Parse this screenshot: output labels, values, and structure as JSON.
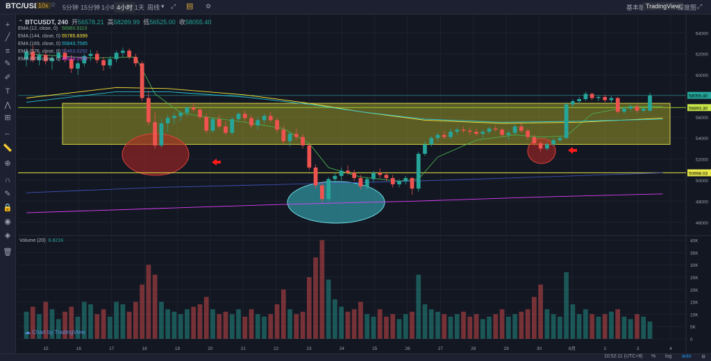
{
  "header": {
    "pair": "BTC/USDT",
    "leverage": "10x",
    "intervals": [
      "5分钟",
      "15分钟",
      "1小时",
      "4小时",
      "1天",
      "周线"
    ],
    "active_interval": "4小时",
    "views": [
      "基本版",
      "TradingView",
      "深度图"
    ],
    "active_view": "TradingView"
  },
  "ohlc": {
    "symbol": "BTCUSDT, 240",
    "open_label": "开",
    "open": "56578.21",
    "high_label": "高",
    "high": "58289.99",
    "low_label": "低",
    "low": "56525.00",
    "close_label": "收",
    "close": "58055.40"
  },
  "legend": [
    {
      "label": "EMA (12, close, 0)",
      "value": "56960.9110",
      "color": "#4caf50"
    },
    {
      "label": "EMA (144, close, 0)",
      "value": "55785.8399",
      "color": "#ffeb3b"
    },
    {
      "label": "EMA (169, close, 0)",
      "value": "55843.7585",
      "color": "#26c6da"
    },
    {
      "label": "EMA (576, close, 0)",
      "value": "50463.0292",
      "color": "#3f51b5"
    },
    {
      "label": "EMA (676, close, 0)",
      "value": "48528.0574",
      "color": "#e040fb"
    }
  ],
  "volume_header": {
    "label": "Volume (20)",
    "value": "6.821K",
    "color": "#26a69a"
  },
  "branding": "Chart by TradingView",
  "bottom": {
    "time": "10:52:11 (UTC+8)",
    "pct": "%",
    "log": "log",
    "auto": "auto"
  },
  "price_labels": {
    "last": {
      "value": "58055.40",
      "color": "#26a69a"
    },
    "resistance": {
      "value": "56893.30",
      "color": "#c8e64a"
    },
    "support": {
      "value": "50698.03",
      "color": "#e8e84a"
    }
  },
  "colors": {
    "up": "#26a69a",
    "down": "#ef5350",
    "zone": "#b5b22a"
  },
  "tools": [
    "crosshair-icon",
    "trendline-icon",
    "fib-icon",
    "brush-icon",
    "pen-icon",
    "text-icon",
    "pattern-icon",
    "measure-icon",
    "arrow-left-icon",
    "ruler-icon",
    "zoom-icon",
    "magnet-icon",
    "lock-draw-icon",
    "lock-icon",
    "eye-icon",
    "layers-icon",
    "trash-icon"
  ],
  "chart_data": {
    "type": "line",
    "subtype": "candlestick",
    "x_ticks": [
      "15",
      "16",
      "17",
      "18",
      "19",
      "20",
      "21",
      "22",
      "23",
      "24",
      "25",
      "26",
      "27",
      "28",
      "29",
      "30",
      "8月",
      "2",
      "3",
      "4"
    ],
    "y_ticks": [
      46000,
      48000,
      50000,
      52000,
      54000,
      56000,
      58000,
      60000,
      62000,
      64000
    ],
    "ylim": [
      44800,
      65600
    ],
    "volume_ticks": [
      "40K",
      "35K",
      "30K",
      "25K",
      "20K",
      "15K",
      "10K",
      "5K",
      "0"
    ],
    "volume_ylim": [
      0,
      41000
    ],
    "candles": [
      [
        61500,
        62500,
        60800,
        62200
      ],
      [
        62200,
        62800,
        61200,
        61400
      ],
      [
        61400,
        62100,
        60900,
        61900
      ],
      [
        61900,
        62200,
        61000,
        61300
      ],
      [
        61300,
        61800,
        60500,
        61600
      ],
      [
        61600,
        62400,
        61300,
        62100
      ],
      [
        62100,
        62500,
        61200,
        61500
      ],
      [
        61500,
        61900,
        60200,
        60600
      ],
      [
        60600,
        61300,
        60000,
        61100
      ],
      [
        61100,
        62000,
        60800,
        61800
      ],
      [
        61800,
        62400,
        61300,
        62000
      ],
      [
        62000,
        62300,
        61100,
        61400
      ],
      [
        61400,
        61700,
        60400,
        60900
      ],
      [
        60900,
        61800,
        60600,
        61500
      ],
      [
        61500,
        62300,
        61200,
        62100
      ],
      [
        62100,
        62600,
        61700,
        62300
      ],
      [
        62300,
        62500,
        61500,
        61700
      ],
      [
        61700,
        62000,
        60800,
        61100
      ],
      [
        61100,
        61300,
        57500,
        57800
      ],
      [
        57800,
        58500,
        55200,
        55500
      ],
      [
        55500,
        56500,
        53000,
        53300
      ],
      [
        53300,
        55800,
        53100,
        55400
      ],
      [
        55400,
        56200,
        54600,
        55900
      ],
      [
        55900,
        56400,
        55300,
        56100
      ],
      [
        56100,
        56600,
        55600,
        56400
      ],
      [
        56400,
        57000,
        56100,
        56900
      ],
      [
        56900,
        57300,
        56500,
        56700
      ],
      [
        56700,
        56900,
        55800,
        56000
      ],
      [
        56000,
        56300,
        54400,
        54700
      ],
      [
        54700,
        56000,
        54500,
        55800
      ],
      [
        55800,
        56200,
        54900,
        55100
      ],
      [
        55100,
        55600,
        54300,
        54500
      ],
      [
        54500,
        56000,
        54300,
        55800
      ],
      [
        55800,
        56500,
        55500,
        56300
      ],
      [
        56300,
        56600,
        55600,
        55900
      ],
      [
        55900,
        56200,
        54900,
        55200
      ],
      [
        55200,
        56000,
        54800,
        55700
      ],
      [
        55700,
        56300,
        55400,
        56100
      ],
      [
        56100,
        56500,
        55500,
        55700
      ],
      [
        55700,
        55900,
        54500,
        54800
      ],
      [
        54800,
        55200,
        53400,
        53700
      ],
      [
        53700,
        54600,
        53200,
        54400
      ],
      [
        54400,
        54900,
        53800,
        54100
      ],
      [
        54100,
        54400,
        53000,
        53300
      ],
      [
        53300,
        53500,
        51000,
        51200
      ],
      [
        51200,
        51500,
        49200,
        49500
      ],
      [
        49500,
        49800,
        47900,
        48200
      ],
      [
        48200,
        50300,
        48000,
        50100
      ],
      [
        50100,
        50700,
        49700,
        50400
      ],
      [
        50400,
        51200,
        50000,
        50900
      ],
      [
        50900,
        51400,
        50500,
        50700
      ],
      [
        50700,
        51000,
        49900,
        50200
      ],
      [
        50200,
        50500,
        49100,
        49400
      ],
      [
        49400,
        50300,
        49100,
        50100
      ],
      [
        50100,
        50900,
        49800,
        50700
      ],
      [
        50700,
        51100,
        50200,
        50500
      ],
      [
        50500,
        50800,
        49900,
        50200
      ],
      [
        50200,
        50500,
        49300,
        49600
      ],
      [
        49600,
        50100,
        49300,
        49900
      ],
      [
        49900,
        50400,
        49600,
        50200
      ],
      [
        50200,
        50300,
        48600,
        49200
      ],
      [
        49200,
        52700,
        48900,
        52500
      ],
      [
        52500,
        53700,
        52300,
        53400
      ],
      [
        53400,
        54200,
        53200,
        54000
      ],
      [
        54000,
        54500,
        53700,
        54300
      ],
      [
        54300,
        54700,
        53900,
        54100
      ],
      [
        54100,
        54900,
        53900,
        54600
      ],
      [
        54600,
        55000,
        54300,
        54800
      ],
      [
        54800,
        55100,
        54500,
        54700
      ],
      [
        54700,
        55000,
        54300,
        54600
      ],
      [
        54600,
        54900,
        54200,
        54400
      ],
      [
        54400,
        54800,
        54000,
        54600
      ],
      [
        54600,
        55100,
        54400,
        54900
      ],
      [
        54900,
        55200,
        54600,
        54800
      ],
      [
        54800,
        55000,
        54100,
        54300
      ],
      [
        54300,
        54700,
        53800,
        54500
      ],
      [
        54500,
        55300,
        54300,
        55100
      ],
      [
        55100,
        55400,
        54500,
        54700
      ],
      [
        54700,
        54900,
        53800,
        54100
      ],
      [
        54100,
        54300,
        53300,
        53500
      ],
      [
        53500,
        53700,
        52700,
        53000
      ],
      [
        53000,
        53600,
        52800,
        53400
      ],
      [
        53400,
        54000,
        53200,
        53800
      ],
      [
        53800,
        54200,
        53600,
        54000
      ],
      [
        54000,
        57400,
        53900,
        57200
      ],
      [
        57200,
        57700,
        56900,
        57500
      ],
      [
        57500,
        57900,
        57200,
        57700
      ],
      [
        57700,
        58400,
        57500,
        58200
      ],
      [
        58200,
        58300,
        57600,
        57800
      ],
      [
        57800,
        58100,
        57500,
        57900
      ],
      [
        57900,
        58100,
        57400,
        57600
      ],
      [
        57600,
        58000,
        57300,
        57800
      ],
      [
        57800,
        57900,
        56300,
        56500
      ],
      [
        56500,
        57000,
        56300,
        56800
      ],
      [
        56800,
        57200,
        56500,
        57000
      ],
      [
        57000,
        57200,
        56400,
        56600
      ],
      [
        56600,
        56900,
        56400,
        56800
      ],
      [
        56600,
        58300,
        56500,
        58055
      ]
    ],
    "volumes": [
      11,
      13,
      10,
      15,
      12,
      8,
      11,
      13,
      9,
      15,
      14,
      10,
      12,
      9,
      15,
      14,
      11,
      15,
      22,
      30,
      26,
      15,
      12,
      11,
      10,
      12,
      13,
      14,
      17,
      12,
      10,
      11,
      10,
      12,
      9,
      12,
      10,
      9,
      10,
      14,
      20,
      12,
      10,
      11,
      25,
      33,
      40,
      24,
      16,
      13,
      11,
      12,
      15,
      10,
      9,
      12,
      9,
      10,
      8,
      10,
      11,
      26,
      14,
      12,
      11,
      10,
      9,
      10,
      11,
      9,
      10,
      8,
      9,
      10,
      12,
      9,
      10,
      11,
      12,
      17,
      22,
      12,
      10,
      9,
      27,
      14,
      10,
      12,
      10,
      9,
      10,
      11,
      12,
      9,
      8,
      10,
      9,
      7
    ],
    "ema": [
      {
        "name": "EMA (12, close, 0)",
        "color": "#4caf50",
        "values": [
          [
            0,
            62000
          ],
          [
            10,
            61600
          ],
          [
            17,
            61700
          ],
          [
            20,
            58200
          ],
          [
            24,
            56400
          ],
          [
            28,
            56000
          ],
          [
            34,
            55500
          ],
          [
            40,
            54900
          ],
          [
            44,
            53500
          ],
          [
            47,
            51200
          ],
          [
            52,
            50300
          ],
          [
            58,
            49900
          ],
          [
            61,
            50100
          ],
          [
            64,
            52200
          ],
          [
            70,
            53800
          ],
          [
            76,
            54300
          ],
          [
            80,
            54100
          ],
          [
            84,
            54200
          ],
          [
            88,
            56300
          ],
          [
            94,
            57000
          ],
          [
            99,
            57000
          ]
        ]
      },
      {
        "name": "EMA (144, close, 0)",
        "color": "#ffeb3b",
        "values": [
          [
            0,
            57800
          ],
          [
            14,
            58800
          ],
          [
            22,
            58700
          ],
          [
            34,
            58100
          ],
          [
            44,
            57300
          ],
          [
            52,
            56500
          ],
          [
            62,
            55700
          ],
          [
            74,
            55400
          ],
          [
            86,
            55500
          ],
          [
            99,
            55900
          ]
        ]
      },
      {
        "name": "EMA (169, close, 0)",
        "color": "#26c6da",
        "values": [
          [
            0,
            57400
          ],
          [
            14,
            58400
          ],
          [
            22,
            58400
          ],
          [
            34,
            57900
          ],
          [
            44,
            57200
          ],
          [
            52,
            56500
          ],
          [
            62,
            55800
          ],
          [
            74,
            55500
          ],
          [
            86,
            55600
          ],
          [
            99,
            55800
          ]
        ]
      },
      {
        "name": "EMA (576, close, 0)",
        "color": "#3f51b5",
        "values": [
          [
            0,
            48800
          ],
          [
            20,
            49300
          ],
          [
            40,
            49600
          ],
          [
            60,
            49900
          ],
          [
            80,
            50300
          ],
          [
            99,
            50700
          ]
        ]
      },
      {
        "name": "EMA (676, close, 0)",
        "color": "#e040fb",
        "values": [
          [
            0,
            46900
          ],
          [
            20,
            47300
          ],
          [
            40,
            47700
          ],
          [
            60,
            48000
          ],
          [
            80,
            48400
          ],
          [
            99,
            48700
          ]
        ]
      }
    ],
    "horizontal_lines": [
      {
        "price": 56893.3,
        "color": "#9acd32"
      },
      {
        "price": 50698.03,
        "color": "#e8e84a"
      },
      {
        "price": 58055.4,
        "color": "#26a69a"
      }
    ],
    "zone": {
      "price_top": 57300,
      "price_bottom": 53400
    }
  }
}
